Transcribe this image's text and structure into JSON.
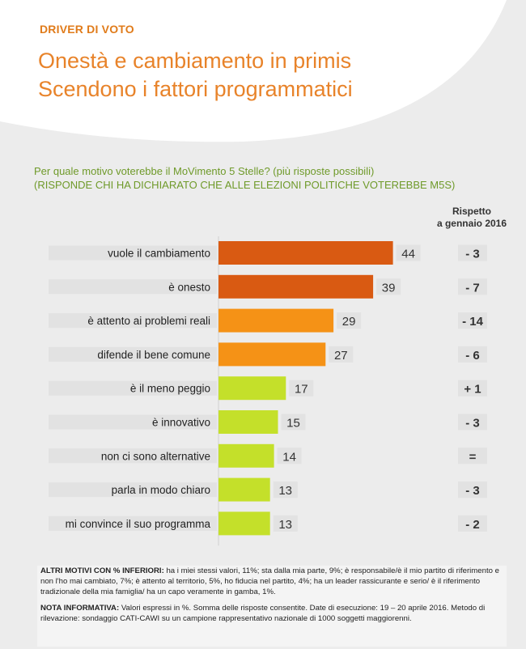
{
  "header": {
    "kicker": "DRIVER DI VOTO",
    "title_line1": "Onestà e cambiamento in primis",
    "title_line2": "Scendono i fattori programmatici"
  },
  "question": {
    "line1": "Per quale motivo voterebbe il MoVimento 5 Stelle? (più risposte possibili)",
    "line2": "(RISPONDE CHI HA DICHIARATO CHE ALLE ELEZIONI POLITICHE VOTEREBBE M5S)"
  },
  "column_header": {
    "line1": "Rispetto",
    "line2": "a gennaio 2016"
  },
  "colors": {
    "dark_orange": "#d95a12",
    "orange": "#f59216",
    "lime": "#c4e02a",
    "accent_title": "#e8832a",
    "accent_question": "#6f9a2a"
  },
  "chart_data": {
    "type": "bar",
    "orientation": "horizontal",
    "title": "Per quale motivo voterebbe il MoVimento 5 Stelle? (più risposte possibili)",
    "xlabel": "",
    "ylabel": "",
    "xlim": [
      0,
      50
    ],
    "categories": [
      "vuole il cambiamento",
      "è onesto",
      "è attento ai problemi reali",
      "difende il bene comune",
      "è il meno peggio",
      "è innovativo",
      "non ci sono alternative",
      "parla in modo chiaro",
      "mi convince il suo programma"
    ],
    "values": [
      44,
      39,
      29,
      27,
      17,
      15,
      14,
      13,
      13
    ],
    "value_labels": [
      "44",
      "39",
      "29",
      "27",
      "17",
      "15",
      "14",
      "13",
      "13"
    ],
    "bar_colors": [
      "#d95a12",
      "#d95a12",
      "#f59216",
      "#f59216",
      "#c4e02a",
      "#c4e02a",
      "#c4e02a",
      "#c4e02a",
      "#c4e02a"
    ],
    "change_vs_jan_2016": [
      "- 3",
      "- 7",
      "- 14",
      "- 6",
      "+ 1",
      "- 3",
      "=",
      "- 3",
      "- 2"
    ]
  },
  "notes": {
    "other_label": "ALTRI MOTIVI CON % INFERIORI:",
    "other_text": "ha i miei stessi valori, 11%; sta dalla mia parte, 9%; è responsabile/è il mio partito di riferimento e non l'ho mai cambiato, 7%; è attento al territorio, 5%, ho fiducia nel partito, 4%; ha un leader rassicurante e serio/ è il riferimento tradizionale della mia famiglia/ ha un capo veramente in gamba, 1%.",
    "info_label": "NOTA INFORMATIVA:",
    "info_text": "Valori espressi in %. Somma delle risposte consentite. Date di esecuzione: 19 – 20 aprile 2016. Metodo di rilevazione: sondaggio CATI-CAWI su un campione rappresentativo nazionale di 1000 soggetti maggiorenni."
  }
}
